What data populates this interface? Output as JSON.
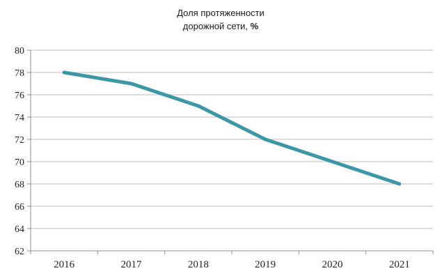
{
  "chart_data": {
    "type": "line",
    "title_line1": "Доля протяженности",
    "title_line2": "дорожной сети, ",
    "title_unit": "%",
    "x": [
      "2016",
      "2017",
      "2018",
      "2019",
      "2020",
      "2021"
    ],
    "series": [
      {
        "values": [
          78,
          77,
          75,
          72,
          70,
          68
        ]
      }
    ],
    "ylim": [
      62,
      80
    ],
    "yticks": [
      62,
      64,
      66,
      68,
      70,
      72,
      74,
      76,
      78,
      80
    ],
    "xlabel": "",
    "ylabel": "",
    "grid": true,
    "legend": "none",
    "line_color": "#3b97a7"
  }
}
